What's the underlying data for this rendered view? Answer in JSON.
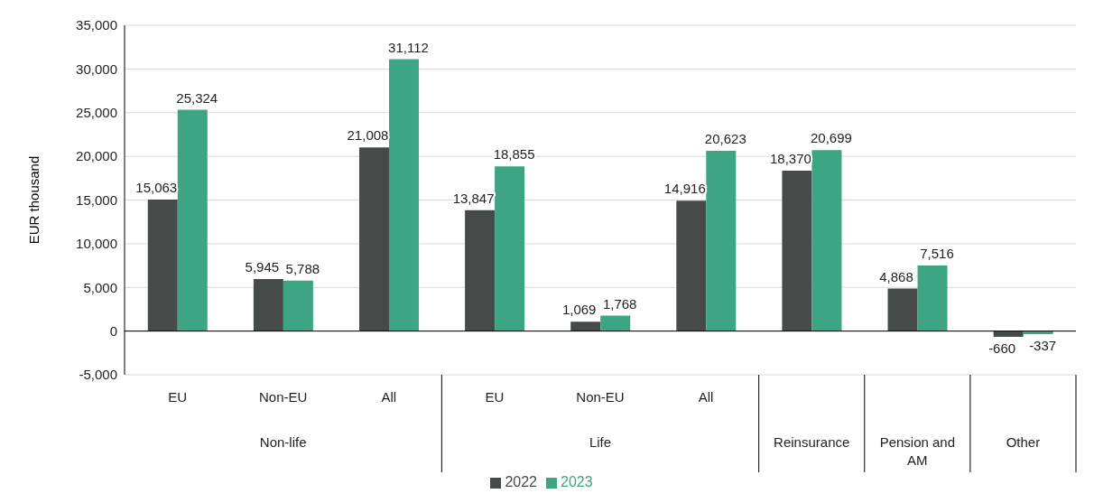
{
  "chart_data": {
    "type": "bar",
    "ylabel": "EUR thousand",
    "categories": [
      "EU",
      "Non-EU",
      "All",
      "EU",
      "Non-EU",
      "All",
      null,
      null,
      null
    ],
    "annotations": [
      "Non-life",
      "Life",
      "Reinsurance",
      "Pension and AM",
      "Other"
    ],
    "series": [
      {
        "name": "2022",
        "color": "#464b4a",
        "values": [
          15063,
          5945,
          21008,
          13847,
          1069,
          14916,
          18370,
          4868,
          -660
        ],
        "value_labels": [
          "15,063",
          "5,945",
          "21,008",
          "13,847",
          "1,069",
          "14,916",
          "18,370",
          "4,868",
          "-660"
        ]
      },
      {
        "name": "2023",
        "color": "#3ea584",
        "values": [
          25324,
          5788,
          31112,
          18855,
          1768,
          20623,
          20699,
          7516,
          -337
        ],
        "value_labels": [
          "25,324",
          "5,788",
          "31,112",
          "18,855",
          "1,768",
          "20,623",
          "20,699",
          "7,516",
          "-337"
        ]
      }
    ],
    "ylim": [
      -5000,
      35000
    ],
    "yticks": [
      {
        "value": -5000,
        "label": "-5,000"
      },
      0,
      {
        "value": 5000,
        "label": "5,000"
      },
      {
        "value": 10000,
        "label": "10,000"
      },
      {
        "value": 15000,
        "label": "15,000"
      },
      {
        "value": 20000,
        "label": "20,000"
      },
      {
        "value": 25000,
        "label": "25,000"
      },
      {
        "value": 30000,
        "label": "30,000"
      },
      {
        "value": 35000,
        "label": "35,000"
      }
    ],
    "grid": "y",
    "legend": "bottom"
  }
}
